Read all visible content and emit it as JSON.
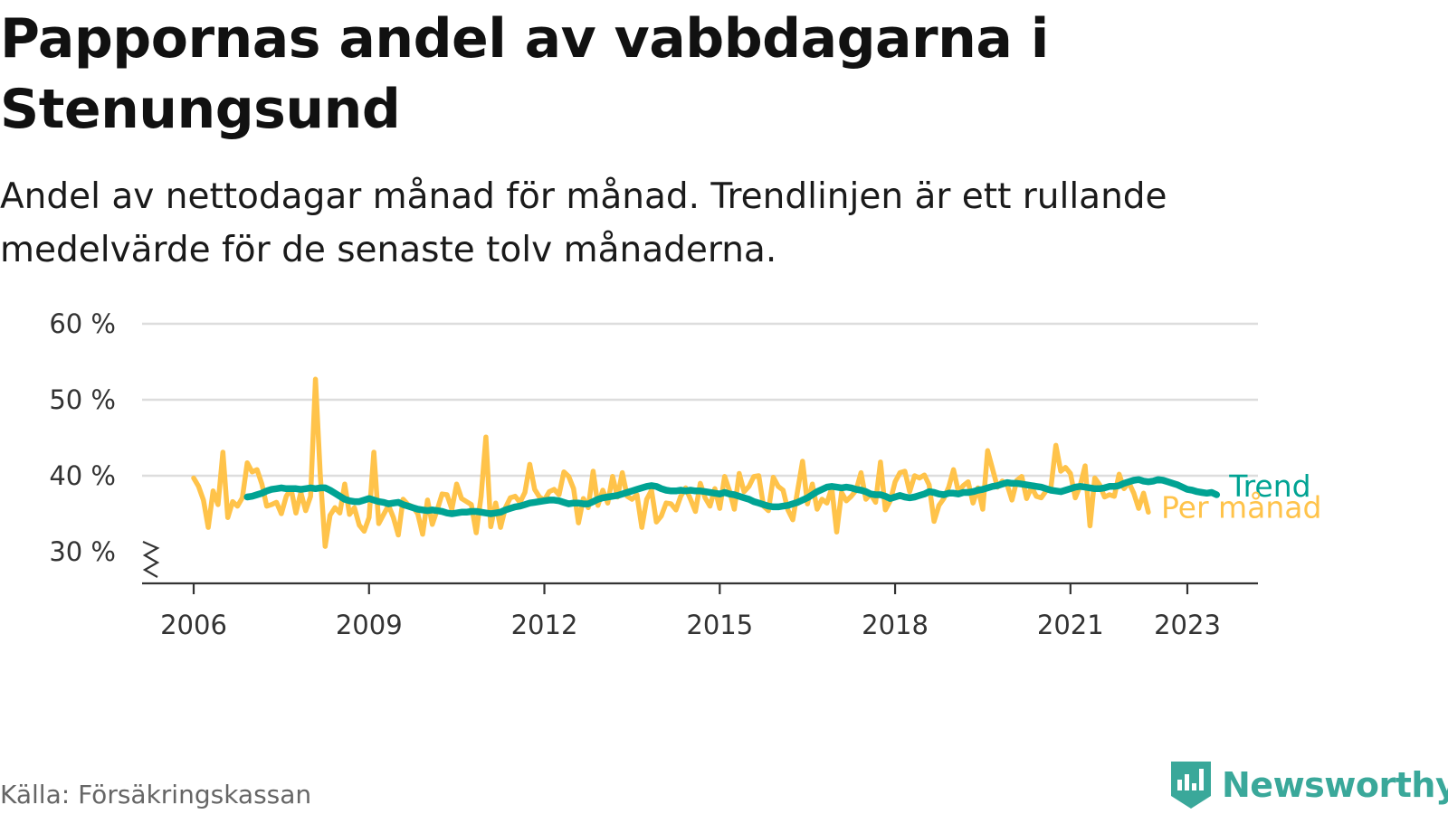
{
  "header": {
    "title": "Pappornas andel av vabbdagarna i Stenungsund",
    "subtitle": "Andel av nettodagar månad för månad. Trendlinjen är ett rullande medelvärde för de senaste tolv månaderna."
  },
  "footer": {
    "source": "Källa: Försäkringskassan",
    "brand": "Newsworthy"
  },
  "colors": {
    "monthly": "#FFC34A",
    "trend": "#00A393",
    "grid": "#DDDDDD",
    "axis": "#333333",
    "brand": "#3AA89A"
  },
  "icons": {
    "axis_break": "zigzag-axis-break-icon",
    "brand_logo": "newsworthy-bar-chart-icon"
  },
  "chart_data": {
    "type": "line",
    "y_unit": "%",
    "ylim": [
      30,
      60
    ],
    "y_axis_broken": true,
    "y_ticks": [
      30,
      40,
      50,
      60
    ],
    "y_tick_labels": [
      "30 %",
      "40 %",
      "50 %",
      "60 %"
    ],
    "x_ticks": [
      2006,
      2009,
      2012,
      2015,
      2018,
      2021,
      2023
    ],
    "x_tick_labels": [
      "2006",
      "2009",
      "2012",
      "2015",
      "2018",
      "2021",
      "2023"
    ],
    "grid": "horizontal",
    "legend": "inline labels at line ends",
    "series": [
      {
        "name": "Per månad",
        "x_start": "2006-01",
        "frequency": "monthly",
        "values": [
          39.7,
          38.6,
          36.8,
          33.2,
          38.0,
          36.2,
          43.1,
          34.5,
          36.6,
          36.0,
          37.1,
          41.7,
          40.5,
          40.8,
          38.9,
          36.0,
          36.2,
          36.5,
          35.0,
          37.3,
          38.3,
          35.1,
          37.8,
          35.4,
          37.3,
          52.7,
          40.1,
          30.7,
          34.8,
          35.8,
          35.1,
          38.9,
          34.9,
          35.8,
          33.5,
          32.7,
          34.5,
          43.1,
          33.7,
          34.9,
          36.1,
          34.5,
          32.2,
          36.9,
          36.2,
          35.9,
          35.0,
          32.3,
          36.8,
          33.6,
          35.5,
          37.6,
          37.5,
          35.6,
          38.9,
          37.0,
          36.6,
          36.2,
          32.5,
          37.3,
          45.1,
          33.3,
          36.4,
          33.2,
          35.8,
          37.1,
          37.3,
          36.5,
          37.8,
          41.5,
          38.2,
          37.2,
          36.8,
          37.9,
          38.2,
          37.5,
          40.5,
          39.9,
          38.3,
          33.8,
          37.0,
          35.8,
          40.6,
          36.1,
          38.1,
          36.4,
          39.9,
          37.2,
          40.4,
          37.3,
          36.9,
          37.5,
          33.2,
          36.9,
          38.1,
          33.9,
          34.7,
          36.4,
          36.3,
          35.5,
          37.3,
          38.4,
          36.9,
          35.3,
          39.0,
          37.1,
          36.0,
          38.3,
          35.7,
          39.9,
          38.0,
          35.6,
          40.3,
          37.9,
          38.6,
          39.9,
          40.0,
          36.0,
          35.4,
          39.8,
          38.6,
          38.1,
          35.5,
          34.2,
          38.1,
          41.9,
          36.3,
          38.9,
          35.6,
          36.9,
          36.4,
          38.4,
          32.6,
          37.8,
          36.7,
          37.3,
          38.1,
          40.4,
          36.9,
          37.6,
          36.5,
          41.8,
          35.5,
          36.7,
          39.2,
          40.4,
          40.6,
          37.9,
          40.0,
          39.7,
          40.1,
          38.8,
          34.0,
          36.1,
          37.0,
          38.5,
          40.8,
          37.9,
          38.7,
          39.2,
          36.4,
          38.4,
          35.6,
          43.3,
          40.9,
          38.5,
          39.3,
          38.8,
          36.8,
          39.4,
          39.9,
          37.0,
          38.5,
          37.3,
          37.1,
          38.0,
          38.5,
          44.0,
          40.6,
          41.1,
          40.3,
          37.1,
          38.7,
          41.3,
          33.4,
          39.7,
          38.8,
          37.2,
          37.5,
          37.3,
          40.2,
          38.3,
          39.1,
          37.7,
          35.7,
          37.7,
          35.2
        ]
      },
      {
        "name": "Trend",
        "x_start": "2006-12",
        "frequency": "monthly",
        "values": [
          37.2,
          37.3,
          37.5,
          37.7,
          38.0,
          38.2,
          38.3,
          38.4,
          38.3,
          38.3,
          38.3,
          38.2,
          38.3,
          38.4,
          38.3,
          38.4,
          38.4,
          38.1,
          37.7,
          37.3,
          36.9,
          36.7,
          36.6,
          36.6,
          36.8,
          37.0,
          36.8,
          36.6,
          36.5,
          36.3,
          36.4,
          36.5,
          36.2,
          36.0,
          35.8,
          35.6,
          35.5,
          35.4,
          35.5,
          35.4,
          35.3,
          35.1,
          35.0,
          35.1,
          35.2,
          35.2,
          35.3,
          35.3,
          35.2,
          35.1,
          35.0,
          35.1,
          35.2,
          35.5,
          35.7,
          35.9,
          36.0,
          36.2,
          36.4,
          36.5,
          36.6,
          36.7,
          36.8,
          36.8,
          36.7,
          36.5,
          36.3,
          36.4,
          36.4,
          36.3,
          36.3,
          36.6,
          36.9,
          37.1,
          37.2,
          37.3,
          37.4,
          37.6,
          37.8,
          38.0,
          38.2,
          38.4,
          38.6,
          38.7,
          38.6,
          38.3,
          38.1,
          38.0,
          38.0,
          38.1,
          38.0,
          38.1,
          38.0,
          38.0,
          37.9,
          37.8,
          37.7,
          37.6,
          37.8,
          37.6,
          37.5,
          37.3,
          37.1,
          36.9,
          36.6,
          36.4,
          36.2,
          36.0,
          35.9,
          35.9,
          36.0,
          36.1,
          36.3,
          36.5,
          36.8,
          37.1,
          37.5,
          37.9,
          38.2,
          38.5,
          38.6,
          38.5,
          38.4,
          38.5,
          38.4,
          38.2,
          38.1,
          37.9,
          37.6,
          37.5,
          37.5,
          37.3,
          37.0,
          37.2,
          37.4,
          37.2,
          37.1,
          37.2,
          37.4,
          37.6,
          37.9,
          37.8,
          37.6,
          37.5,
          37.7,
          37.7,
          37.6,
          37.8,
          37.8,
          37.9,
          38.1,
          38.2,
          38.4,
          38.6,
          38.7,
          38.9,
          39.1,
          39.0,
          39.0,
          38.9,
          38.8,
          38.7,
          38.6,
          38.5,
          38.3,
          38.1,
          38.0,
          37.9,
          38.1,
          38.3,
          38.5,
          38.6,
          38.5,
          38.4,
          38.3,
          38.3,
          38.4,
          38.6,
          38.6,
          38.7,
          39.0,
          39.2,
          39.4,
          39.5,
          39.3,
          39.2,
          39.3,
          39.5,
          39.4,
          39.2,
          39.0,
          38.8,
          38.5,
          38.2,
          38.1,
          37.9,
          37.8,
          37.7,
          37.8,
          37.5
        ]
      }
    ]
  }
}
